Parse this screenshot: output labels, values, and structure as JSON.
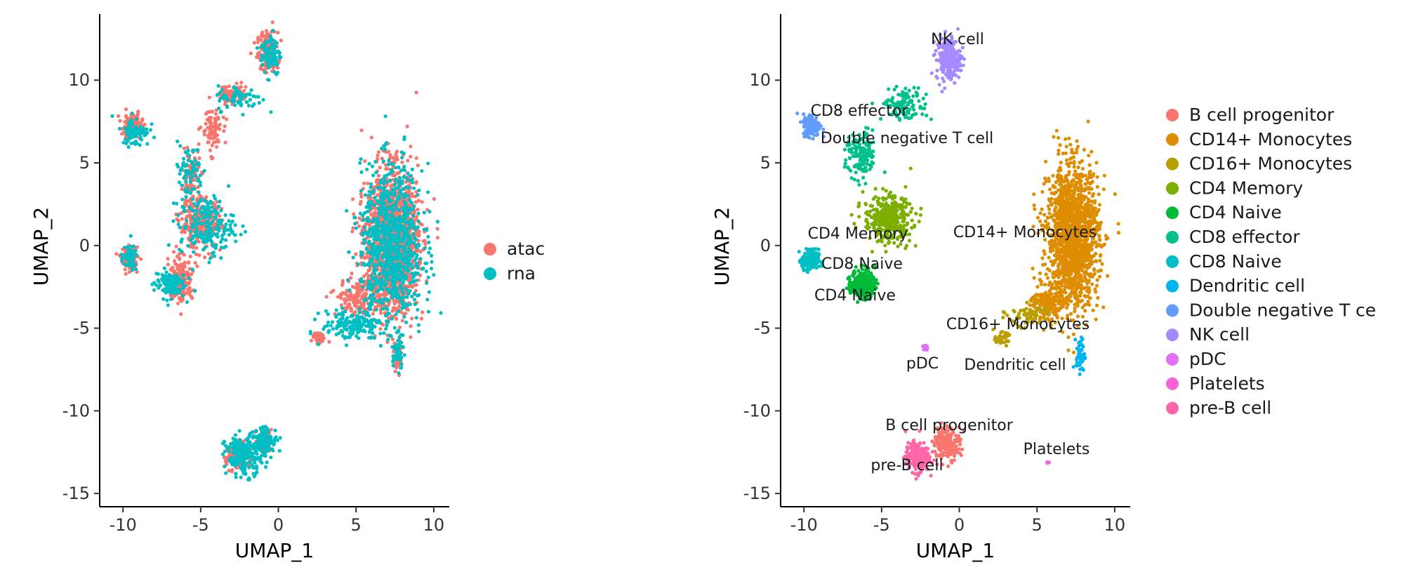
{
  "chart_data": [
    {
      "type": "scatter",
      "title": "",
      "xlabel": "UMAP_1",
      "ylabel": "UMAP_2",
      "xlim": [
        -11.5,
        11
      ],
      "ylim": [
        -15.8,
        14
      ],
      "x_ticks": [
        -10,
        -5,
        0,
        5,
        10
      ],
      "y_ticks": [
        -15,
        -10,
        -5,
        0,
        5,
        10
      ],
      "grid": false,
      "legend_position": "right",
      "series": [
        {
          "name": "atac",
          "color": "#F8766D",
          "clusters": [
            {
              "cx": -0.7,
              "cy": 11.7,
              "rx": 0.6,
              "ry": 1.1,
              "n": 160
            },
            {
              "cx": -3.0,
              "cy": 9.2,
              "rx": 0.8,
              "ry": 0.6,
              "n": 70
            },
            {
              "cx": -9.4,
              "cy": 7.2,
              "rx": 0.6,
              "ry": 0.7,
              "n": 140
            },
            {
              "cx": -4.3,
              "cy": 7.0,
              "rx": 0.6,
              "ry": 1.2,
              "n": 90
            },
            {
              "cx": -5.6,
              "cy": 4.3,
              "rx": 0.5,
              "ry": 1.3,
              "n": 80
            },
            {
              "cx": -5.0,
              "cy": 1.3,
              "rx": 1.2,
              "ry": 1.4,
              "n": 320
            },
            {
              "cx": -6.3,
              "cy": -2.1,
              "rx": 0.7,
              "ry": 1.1,
              "n": 230
            },
            {
              "cx": -9.6,
              "cy": -0.8,
              "rx": 0.5,
              "ry": 0.6,
              "n": 110
            },
            {
              "cx": 7.3,
              "cy": 0.3,
              "rx": 1.5,
              "ry": 3.8,
              "n": 1700
            },
            {
              "cx": 5.2,
              "cy": -3.2,
              "rx": 1.3,
              "ry": 1.0,
              "n": 160
            },
            {
              "cx": 7.7,
              "cy": -6.7,
              "rx": 0.25,
              "ry": 0.9,
              "n": 50
            },
            {
              "cx": 2.6,
              "cy": -5.6,
              "rx": 0.4,
              "ry": 0.3,
              "n": 40
            },
            {
              "cx": -2.7,
              "cy": -12.8,
              "rx": 0.6,
              "ry": 0.8,
              "n": 140
            },
            {
              "cx": -0.9,
              "cy": -11.8,
              "rx": 0.4,
              "ry": 0.6,
              "n": 90
            }
          ]
        },
        {
          "name": "rna",
          "color": "#00BFC4",
          "clusters": [
            {
              "cx": -0.5,
              "cy": 11.6,
              "rx": 0.6,
              "ry": 1.2,
              "n": 90
            },
            {
              "cx": -2.5,
              "cy": 8.9,
              "rx": 1.3,
              "ry": 0.7,
              "n": 70
            },
            {
              "cx": -9.2,
              "cy": 6.9,
              "rx": 0.8,
              "ry": 0.8,
              "n": 80
            },
            {
              "cx": -5.8,
              "cy": 4.5,
              "rx": 0.9,
              "ry": 1.5,
              "n": 70
            },
            {
              "cx": -4.6,
              "cy": 1.2,
              "rx": 1.6,
              "ry": 1.6,
              "n": 200
            },
            {
              "cx": -7.0,
              "cy": -2.3,
              "rx": 0.9,
              "ry": 0.8,
              "n": 120
            },
            {
              "cx": -9.6,
              "cy": -0.8,
              "rx": 0.5,
              "ry": 0.7,
              "n": 50
            },
            {
              "cx": 7.3,
              "cy": 0.0,
              "rx": 1.8,
              "ry": 4.3,
              "n": 900
            },
            {
              "cx": 4.8,
              "cy": -4.8,
              "rx": 1.8,
              "ry": 0.8,
              "n": 160
            },
            {
              "cx": 7.7,
              "cy": -6.5,
              "rx": 0.3,
              "ry": 0.9,
              "n": 40
            },
            {
              "cx": -2.2,
              "cy": -12.7,
              "rx": 1.1,
              "ry": 1.1,
              "n": 220
            },
            {
              "cx": -0.8,
              "cy": -11.8,
              "rx": 0.7,
              "ry": 0.8,
              "n": 90
            }
          ]
        }
      ]
    },
    {
      "type": "scatter",
      "title": "",
      "xlabel": "UMAP_1",
      "ylabel": "UMAP_2",
      "xlim": [
        -11.5,
        11
      ],
      "ylim": [
        -15.8,
        14
      ],
      "x_ticks": [
        -10,
        -5,
        0,
        5,
        10
      ],
      "y_ticks": [
        -15,
        -10,
        -5,
        0,
        5,
        10
      ],
      "grid": false,
      "legend_position": "right",
      "series": [
        {
          "name": "B cell progenitor",
          "legend_label": "B cell progenitor",
          "color": "#F8766D",
          "label": "B cell progenitor",
          "clusters": [
            {
              "cx": -0.8,
              "cy": -11.9,
              "rx": 0.8,
              "ry": 0.9,
              "n": 170
            }
          ]
        },
        {
          "name": "CD14+ Monocytes",
          "legend_label": "CD14+ Monocytes",
          "color": "#DE8C00",
          "label": "CD14+ Monocytes",
          "clusters": [
            {
              "cx": 7.3,
              "cy": 0.6,
              "rx": 1.5,
              "ry": 3.8,
              "n": 1600
            },
            {
              "cx": 5.6,
              "cy": -3.6,
              "rx": 0.9,
              "ry": 1.0,
              "n": 160
            }
          ]
        },
        {
          "name": "CD16+ Monocytes",
          "legend_label": "CD16+ Monocytes",
          "color": "#B79F00",
          "label": "CD16+ Monocytes",
          "clusters": [
            {
              "cx": 2.7,
              "cy": -5.6,
              "rx": 0.4,
              "ry": 0.3,
              "n": 50
            },
            {
              "cx": 4.5,
              "cy": -4.2,
              "rx": 1.3,
              "ry": 0.6,
              "n": 60
            }
          ]
        },
        {
          "name": "CD4 Memory",
          "legend_label": "CD4 Memory",
          "color": "#7CAE00",
          "label": "CD4 Memory",
          "clusters": [
            {
              "cx": -4.6,
              "cy": 1.6,
              "rx": 1.4,
              "ry": 1.3,
              "n": 380
            }
          ]
        },
        {
          "name": "CD4 Naive",
          "legend_label": "CD4 Naive",
          "color": "#00BA38",
          "label": "CD4 Naive",
          "clusters": [
            {
              "cx": -6.2,
              "cy": -2.3,
              "rx": 0.7,
              "ry": 0.8,
              "n": 280
            }
          ]
        },
        {
          "name": "CD8 effector",
          "legend_label": "CD8 effector",
          "color": "#00C08B",
          "label": "CD8 effector",
          "clusters": [
            {
              "cx": -3.5,
              "cy": 8.5,
              "rx": 1.3,
              "ry": 0.9,
              "n": 120
            },
            {
              "cx": -6.3,
              "cy": 5.4,
              "rx": 0.9,
              "ry": 1.3,
              "n": 140
            }
          ]
        },
        {
          "name": "CD8 Naive",
          "legend_label": "CD8 Naive",
          "color": "#00BFC4",
          "label": "CD8 Naive",
          "clusters": [
            {
              "cx": -9.6,
              "cy": -0.9,
              "rx": 0.5,
              "ry": 0.6,
              "n": 160
            }
          ]
        },
        {
          "name": "Dendritic cell",
          "legend_label": "Dendritic cell",
          "color": "#00B4F0",
          "label": "Dendritic cell",
          "clusters": [
            {
              "cx": 7.8,
              "cy": -6.6,
              "rx": 0.25,
              "ry": 0.9,
              "n": 60
            }
          ]
        },
        {
          "name": "Double negative T cell",
          "legend_label": "Double negative T ce",
          "color": "#619CFF",
          "label": "Double negative T cell",
          "clusters": [
            {
              "cx": -9.5,
              "cy": 7.3,
              "rx": 0.5,
              "ry": 0.6,
              "n": 180
            }
          ]
        },
        {
          "name": "NK cell",
          "legend_label": "NK cell",
          "color": "#A58AFF",
          "label": "NK cell",
          "clusters": [
            {
              "cx": -0.7,
              "cy": 11.3,
              "rx": 0.7,
              "ry": 1.2,
              "n": 220
            }
          ]
        },
        {
          "name": "pDC",
          "legend_label": "pDC",
          "color": "#DF70F8",
          "label": "pDC",
          "clusters": [
            {
              "cx": -2.2,
              "cy": -6.2,
              "rx": 0.15,
              "ry": 0.15,
              "n": 10
            }
          ]
        },
        {
          "name": "Platelets",
          "legend_label": "Platelets",
          "color": "#FB61D7",
          "label": "Platelets",
          "clusters": [
            {
              "cx": 5.7,
              "cy": -13.1,
              "rx": 0.08,
              "ry": 0.08,
              "n": 5
            }
          ]
        },
        {
          "name": "pre-B cell",
          "legend_label": "pre-B cell",
          "color": "#FF66A8",
          "label": "pre-B cell",
          "clusters": [
            {
              "cx": -2.7,
              "cy": -12.8,
              "rx": 0.7,
              "ry": 0.8,
              "n": 230
            }
          ]
        }
      ]
    }
  ]
}
